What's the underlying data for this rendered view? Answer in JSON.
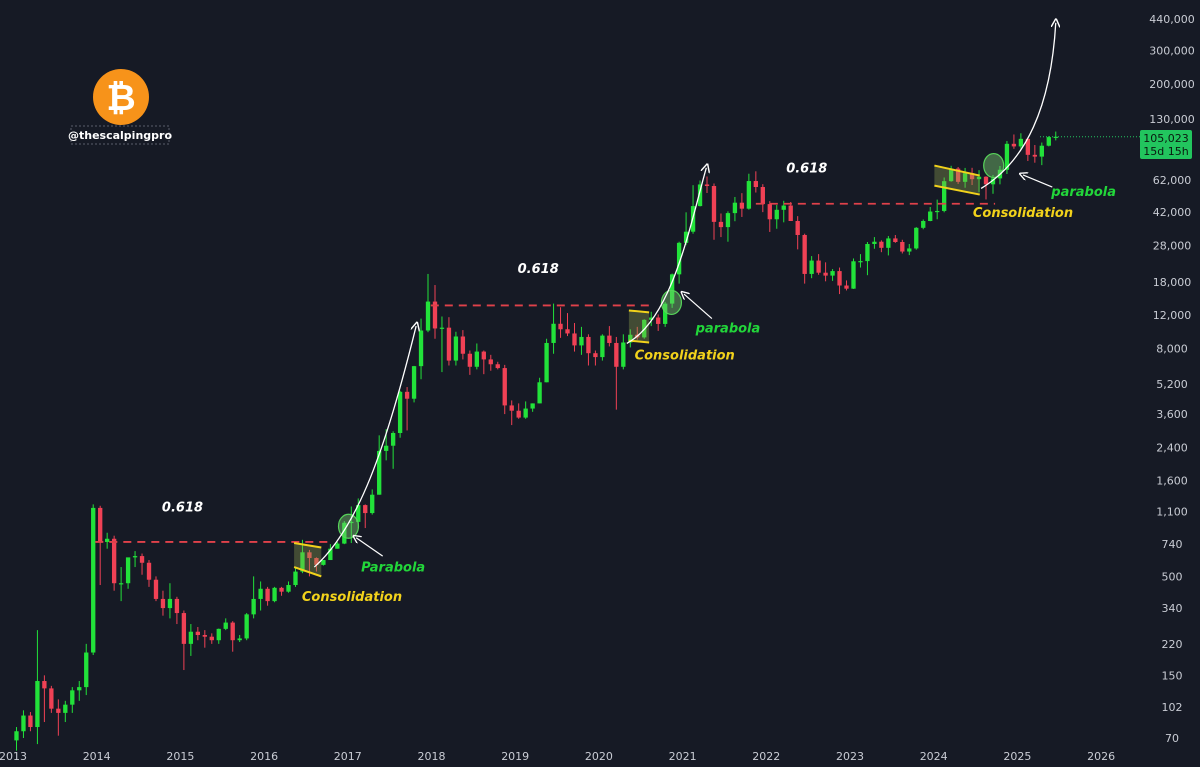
{
  "branding": {
    "logo_glyph": "₿",
    "logo_color": "#f7931a",
    "handle": "@thescalpingpro"
  },
  "price_badge": {
    "price": "105,023",
    "countdown": "15d 15h",
    "color": "#22c55e"
  },
  "colors": {
    "up": "#22e23a",
    "down": "#f04155",
    "fib_line": "#e0414a",
    "consolidation": "#f2d21b",
    "parabola_text": "#22d63a",
    "curve": "#ffffff"
  },
  "chart_data": {
    "type": "candlestick",
    "title": "",
    "xlabel": "",
    "ylabel": "",
    "y_scale": "log",
    "ylim": [
      68,
      500000
    ],
    "xlim": [
      "2013-01",
      "2026-07"
    ],
    "x_ticks": [
      "2013",
      "2014",
      "2015",
      "2016",
      "2017",
      "2018",
      "2019",
      "2020",
      "2021",
      "2022",
      "2023",
      "2024",
      "2025",
      "2026"
    ],
    "y_ticks": [
      70,
      102,
      150,
      220,
      340,
      500,
      740,
      1100,
      1600,
      2400,
      3600,
      5200,
      8000,
      12000,
      18000,
      28000,
      42000,
      62000,
      130000,
      200000,
      300000,
      440000
    ],
    "y_tick_labels": [
      "70",
      "102",
      "150",
      "220",
      "340",
      "500",
      "740",
      "1,100",
      "1,600",
      "2,400",
      "3,600",
      "5,200",
      "8,000",
      "12,000",
      "18,000",
      "28,000",
      "42,000",
      "62,000",
      "130,000",
      "200,000",
      "300,000",
      "440,000"
    ],
    "candle_period": "monthly",
    "start_month": "2013-01",
    "candles": [
      [
        68,
        80,
        60,
        76
      ],
      [
        76,
        98,
        70,
        92
      ],
      [
        92,
        96,
        76,
        80
      ],
      [
        80,
        260,
        65,
        140
      ],
      [
        140,
        150,
        85,
        128
      ],
      [
        128,
        132,
        95,
        100
      ],
      [
        100,
        112,
        72,
        95
      ],
      [
        95,
        110,
        85,
        105
      ],
      [
        105,
        130,
        95,
        125
      ],
      [
        125,
        140,
        110,
        130
      ],
      [
        130,
        220,
        118,
        198
      ],
      [
        198,
        1200,
        192,
        1150
      ],
      [
        1150,
        1180,
        450,
        760
      ],
      [
        760,
        850,
        700,
        790
      ],
      [
        790,
        820,
        420,
        460
      ],
      [
        460,
        560,
        370,
        460
      ],
      [
        460,
        560,
        430,
        630
      ],
      [
        630,
        680,
        560,
        640
      ],
      [
        640,
        660,
        510,
        590
      ],
      [
        590,
        610,
        440,
        480
      ],
      [
        480,
        500,
        370,
        380
      ],
      [
        380,
        420,
        310,
        340
      ],
      [
        340,
        460,
        300,
        380
      ],
      [
        380,
        390,
        280,
        320
      ],
      [
        320,
        330,
        160,
        220
      ],
      [
        220,
        280,
        190,
        255
      ],
      [
        255,
        270,
        230,
        245
      ],
      [
        245,
        260,
        210,
        240
      ],
      [
        240,
        250,
        220,
        230
      ],
      [
        230,
        265,
        220,
        264
      ],
      [
        264,
        300,
        260,
        285
      ],
      [
        285,
        290,
        200,
        230
      ],
      [
        230,
        245,
        225,
        235
      ],
      [
        235,
        320,
        230,
        315
      ],
      [
        315,
        500,
        300,
        380
      ],
      [
        380,
        470,
        330,
        430
      ],
      [
        430,
        440,
        350,
        370
      ],
      [
        370,
        440,
        365,
        435
      ],
      [
        435,
        440,
        395,
        415
      ],
      [
        415,
        470,
        410,
        450
      ],
      [
        450,
        560,
        440,
        530
      ],
      [
        530,
        780,
        520,
        670
      ],
      [
        670,
        690,
        500,
        625
      ],
      [
        625,
        630,
        530,
        575
      ],
      [
        575,
        610,
        570,
        610
      ],
      [
        610,
        740,
        610,
        700
      ],
      [
        700,
        760,
        700,
        745
      ],
      [
        745,
        980,
        740,
        960
      ],
      [
        960,
        1170,
        750,
        970
      ],
      [
        970,
        1290,
        900,
        1190
      ],
      [
        1190,
        1200,
        900,
        1080
      ],
      [
        1080,
        1440,
        1060,
        1350
      ],
      [
        1350,
        2780,
        1350,
        2300
      ],
      [
        2300,
        3000,
        2050,
        2450
      ],
      [
        2450,
        2920,
        1850,
        2860
      ],
      [
        2860,
        4780,
        2700,
        4720
      ],
      [
        4720,
        5000,
        2950,
        4340
      ],
      [
        4340,
        6470,
        4150,
        6450
      ],
      [
        6450,
        11500,
        5500,
        9950
      ],
      [
        9950,
        19800,
        9750,
        14150
      ],
      [
        14150,
        17300,
        9000,
        10200
      ],
      [
        10200,
        11800,
        6000,
        10300
      ],
      [
        10300,
        11700,
        6500,
        6900
      ],
      [
        6900,
        9800,
        6500,
        9250
      ],
      [
        9250,
        10000,
        7000,
        7500
      ],
      [
        7500,
        7800,
        5800,
        6400
      ],
      [
        6400,
        8500,
        6200,
        7700
      ],
      [
        7700,
        7800,
        5850,
        7000
      ],
      [
        7000,
        7400,
        6100,
        6600
      ],
      [
        6600,
        6800,
        6200,
        6300
      ],
      [
        6300,
        6550,
        3600,
        4000
      ],
      [
        4000,
        4250,
        3150,
        3750
      ],
      [
        3750,
        4100,
        3400,
        3450
      ],
      [
        3450,
        4200,
        3400,
        3850
      ],
      [
        3850,
        4100,
        3700,
        4100
      ],
      [
        4100,
        5600,
        4100,
        5300
      ],
      [
        5300,
        9000,
        5300,
        8550
      ],
      [
        8550,
        13800,
        7500,
        10800
      ],
      [
        10800,
        13200,
        9100,
        10100
      ],
      [
        10100,
        12300,
        9300,
        9600
      ],
      [
        9600,
        10900,
        7700,
        8300
      ],
      [
        8300,
        10400,
        7400,
        9200
      ],
      [
        9200,
        9500,
        6500,
        7550
      ],
      [
        7550,
        7800,
        6500,
        7200
      ],
      [
        7200,
        9500,
        6900,
        9350
      ],
      [
        9350,
        10500,
        8200,
        8550
      ],
      [
        8550,
        9200,
        3800,
        6400
      ],
      [
        6400,
        9500,
        6200,
        8600
      ],
      [
        8600,
        10100,
        8100,
        9450
      ],
      [
        9450,
        10400,
        8900,
        9150
      ],
      [
        9150,
        11400,
        9000,
        11330
      ],
      [
        11330,
        12500,
        10500,
        11650
      ],
      [
        11650,
        12100,
        9900,
        10780
      ],
      [
        10780,
        14100,
        10400,
        13800
      ],
      [
        13800,
        19900,
        13100,
        19700
      ],
      [
        19700,
        29300,
        17600,
        28900
      ],
      [
        28900,
        41900,
        28100,
        33100
      ],
      [
        33100,
        58300,
        32300,
        45200
      ],
      [
        45200,
        61700,
        45000,
        58800
      ],
      [
        58800,
        64800,
        53000,
        57700
      ],
      [
        57700,
        59500,
        30000,
        37300
      ],
      [
        37300,
        41300,
        31000,
        35000
      ],
      [
        35000,
        42400,
        29300,
        41500
      ],
      [
        41500,
        50500,
        37600,
        47100
      ],
      [
        47100,
        52900,
        39600,
        43800
      ],
      [
        43800,
        67000,
        43300,
        61300
      ],
      [
        61300,
        69000,
        53300,
        57000
      ],
      [
        57000,
        59000,
        42000,
        46300
      ],
      [
        46300,
        48000,
        33000,
        38500
      ],
      [
        38500,
        45800,
        34300,
        43200
      ],
      [
        43200,
        48200,
        37100,
        45500
      ],
      [
        45500,
        47500,
        37800,
        37700
      ],
      [
        37700,
        40000,
        26700,
        31800
      ],
      [
        31800,
        32300,
        17600,
        19800
      ],
      [
        19800,
        24600,
        18800,
        23300
      ],
      [
        23300,
        25200,
        19600,
        20100
      ],
      [
        20100,
        22800,
        18100,
        19400
      ],
      [
        19400,
        21000,
        18200,
        20500
      ],
      [
        20500,
        21400,
        15500,
        17200
      ],
      [
        17200,
        18300,
        16200,
        16550
      ],
      [
        16550,
        23900,
        16500,
        23100
      ],
      [
        23100,
        25200,
        21400,
        23150
      ],
      [
        23150,
        29200,
        19500,
        28500
      ],
      [
        28500,
        31000,
        26900,
        29300
      ],
      [
        29300,
        29800,
        25800,
        27200
      ],
      [
        27200,
        31400,
        24800,
        30500
      ],
      [
        30500,
        31800,
        28900,
        29200
      ],
      [
        29200,
        30000,
        25400,
        26000
      ],
      [
        26000,
        28500,
        24900,
        27000
      ],
      [
        27000,
        35000,
        26600,
        34700
      ],
      [
        34700,
        38400,
        34100,
        37700
      ],
      [
        37700,
        44700,
        37600,
        42300
      ],
      [
        42300,
        48900,
        38500,
        42600
      ],
      [
        42600,
        64000,
        41900,
        61200
      ],
      [
        61200,
        73800,
        60800,
        71300
      ],
      [
        71300,
        72700,
        59200,
        60700
      ],
      [
        60700,
        71900,
        56500,
        67500
      ],
      [
        67500,
        72000,
        58400,
        62700
      ],
      [
        62700,
        70000,
        53500,
        64600
      ],
      [
        64600,
        65000,
        49000,
        58900
      ],
      [
        58900,
        66000,
        52500,
        63300
      ],
      [
        63300,
        73600,
        58900,
        70300
      ],
      [
        70300,
        99800,
        66800,
        96400
      ],
      [
        96400,
        108000,
        90700,
        93400
      ],
      [
        93400,
        109600,
        89200,
        102400
      ],
      [
        102400,
        102500,
        78200,
        84300
      ],
      [
        84300,
        95000,
        76600,
        82500
      ],
      [
        82500,
        97900,
        74400,
        94200
      ],
      [
        94200,
        105800,
        93400,
        104600
      ],
      [
        104600,
        111900,
        100500,
        105023
      ]
    ],
    "annotations": {
      "fib_label": "0.618",
      "consolidation_label": "Consolidation",
      "parabola_capital": "Parabola",
      "parabola_lower": "parabola"
    }
  }
}
